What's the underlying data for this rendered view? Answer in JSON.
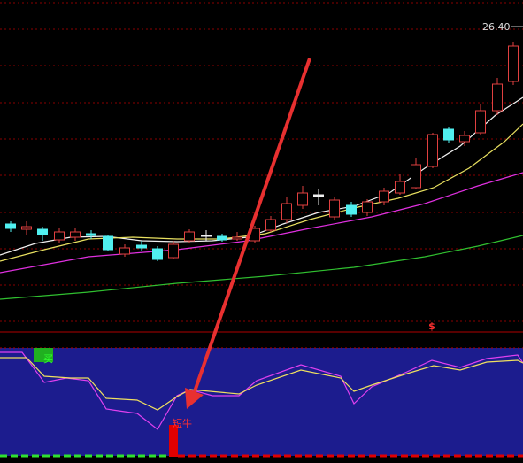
{
  "price_label": "26.40",
  "indicator_marker": "$",
  "signals": {
    "buy": "买",
    "short_bull": "短牛"
  }
}
